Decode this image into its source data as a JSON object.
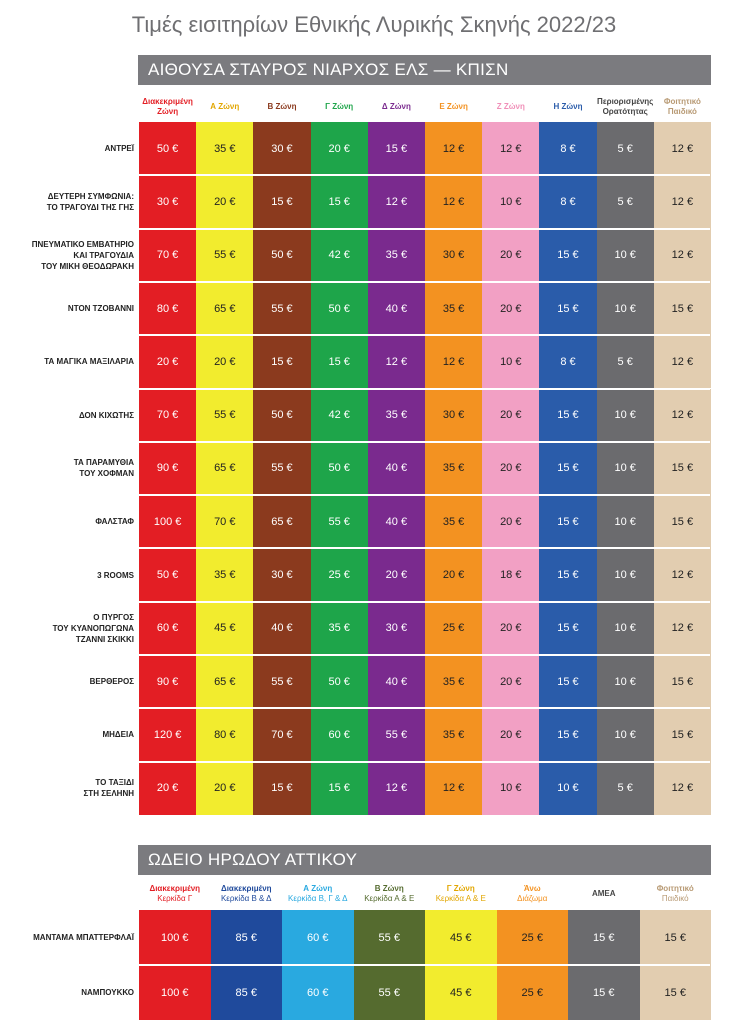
{
  "title": "Τιμές εισιτηρίων Εθνικής Λυρικής Σκηνής 2022/23",
  "section1": {
    "heading": "ΑΙΘΟΥΣΑ ΣΤΑΥΡΟΣ ΝΙΑΡΧΟΣ ΕΛΣ — ΚΠΙΣΝ",
    "columns": [
      {
        "lines": [
          "Διακεκριμένη",
          "Ζώνη"
        ],
        "color": "#e31e24",
        "text": "#ffffff"
      },
      {
        "lines": [
          "Α Ζώνη"
        ],
        "color": "#f2ec2e",
        "text": "#222222"
      },
      {
        "lines": [
          "Β Ζώνη"
        ],
        "color": "#8b3a1e",
        "text": "#ffffff"
      },
      {
        "lines": [
          "Γ Ζώνη"
        ],
        "color": "#1ea54a",
        "text": "#ffffff"
      },
      {
        "lines": [
          "Δ Ζώνη"
        ],
        "color": "#7a2a8e",
        "text": "#ffffff"
      },
      {
        "lines": [
          "Ε Ζώνη"
        ],
        "color": "#f39221",
        "text": "#222222"
      },
      {
        "lines": [
          "Ζ Ζώνη"
        ],
        "color": "#f2a0c4",
        "text": "#222222"
      },
      {
        "lines": [
          "Η Ζώνη"
        ],
        "color": "#2a5caa",
        "text": "#ffffff"
      },
      {
        "lines": [
          "Περιορισμένης",
          "Ορατότητας"
        ],
        "color": "#6b6b6e",
        "text": "#ffffff"
      },
      {
        "lines": [
          "Φοιτητικό",
          "Παιδικό"
        ],
        "color": "#e2cdb0",
        "text": "#222222"
      }
    ],
    "header_colors": [
      "#e31e24",
      "#e2a600",
      "#8b3a1e",
      "#1ea54a",
      "#7a2a8e",
      "#f39221",
      "#f08fb8",
      "#2a5caa",
      "#444444",
      "#b89a74"
    ],
    "rows": [
      {
        "label": [
          "ΑΝΤΡΕΪ"
        ],
        "prices": [
          "50 €",
          "35 €",
          "30 €",
          "20 €",
          "15 €",
          "12 €",
          "12 €",
          "8 €",
          "5 €",
          "12 €"
        ]
      },
      {
        "label": [
          "ΔΕΥΤΕΡΗ ΣΥΜΦΩΝΙΑ:",
          "ΤΟ ΤΡΑΓΟΥΔΙ ΤΗΣ ΓΗΣ"
        ],
        "prices": [
          "30 €",
          "20 €",
          "15 €",
          "15 €",
          "12 €",
          "12 €",
          "10 €",
          "8 €",
          "5 €",
          "12 €"
        ]
      },
      {
        "label": [
          "ΠΝΕΥΜΑΤΙΚΟ ΕΜΒΑΤΗΡΙΟ",
          "ΚΑΙ ΤΡΑΓΟΥΔΙΑ",
          "ΤΟΥ ΜΙΚΗ ΘΕΟΔΩΡΑΚΗ"
        ],
        "prices": [
          "70 €",
          "55 €",
          "50 €",
          "42 €",
          "35 €",
          "30 €",
          "20 €",
          "15 €",
          "10 €",
          "12 €"
        ]
      },
      {
        "label": [
          "ΝΤΟΝ ΤΖΟΒΑΝΝΙ"
        ],
        "prices": [
          "80 €",
          "65 €",
          "55 €",
          "50 €",
          "40 €",
          "35 €",
          "20 €",
          "15 €",
          "10 €",
          "15 €"
        ]
      },
      {
        "label": [
          "ΤΑ ΜΑΓΙΚΑ ΜΑΞΙΛΑΡΙΑ"
        ],
        "prices": [
          "20 €",
          "20 €",
          "15 €",
          "15 €",
          "12 €",
          "12 €",
          "10 €",
          "8 €",
          "5 €",
          "12 €"
        ]
      },
      {
        "label": [
          "ΔΟΝ ΚΙΧΩΤΗΣ"
        ],
        "prices": [
          "70 €",
          "55 €",
          "50 €",
          "42 €",
          "35 €",
          "30 €",
          "20 €",
          "15 €",
          "10 €",
          "12 €"
        ]
      },
      {
        "label": [
          "ΤΑ ΠΑΡΑΜΥΘΙΑ",
          "ΤΟΥ ΧΟΦΜΑΝ"
        ],
        "prices": [
          "90 €",
          "65 €",
          "55 €",
          "50 €",
          "40 €",
          "35 €",
          "20 €",
          "15 €",
          "10 €",
          "15 €"
        ]
      },
      {
        "label": [
          "ΦΑΛΣΤΑΦ"
        ],
        "prices": [
          "100 €",
          "70 €",
          "65 €",
          "55 €",
          "40 €",
          "35 €",
          "20 €",
          "15 €",
          "10 €",
          "15 €"
        ]
      },
      {
        "label": [
          "3 ROOMS"
        ],
        "prices": [
          "50 €",
          "35 €",
          "30 €",
          "25 €",
          "20 €",
          "20 €",
          "18 €",
          "15 €",
          "10 €",
          "12 €"
        ]
      },
      {
        "label": [
          "Ο ΠΥΡΓΟΣ",
          "ΤΟΥ ΚΥΑΝΟΠΩΓΩΝΑ",
          "ΤΖΑΝΝΙ ΣΚΙΚΚΙ"
        ],
        "prices": [
          "60 €",
          "45 €",
          "40 €",
          "35 €",
          "30 €",
          "25 €",
          "20 €",
          "15 €",
          "10 €",
          "12 €"
        ]
      },
      {
        "label": [
          "ΒΕΡΘΕΡΟΣ"
        ],
        "prices": [
          "90 €",
          "65 €",
          "55 €",
          "50 €",
          "40 €",
          "35 €",
          "20 €",
          "15 €",
          "10 €",
          "15 €"
        ]
      },
      {
        "label": [
          "ΜΗΔΕΙΑ"
        ],
        "prices": [
          "120 €",
          "80 €",
          "70 €",
          "60 €",
          "55 €",
          "35 €",
          "20 €",
          "15 €",
          "10 €",
          "15 €"
        ]
      },
      {
        "label": [
          "ΤΟ ΤΑΞΙΔΙ",
          "ΣΤΗ ΣΕΛΗΝΗ"
        ],
        "prices": [
          "20 €",
          "20 €",
          "15 €",
          "15 €",
          "12 €",
          "12 €",
          "10 €",
          "10 €",
          "5 €",
          "12 €"
        ]
      }
    ]
  },
  "section2": {
    "heading": "ΩΔΕΙΟ ΗΡΩΔΟΥ ΑΤΤΙΚΟΥ",
    "columns": [
      {
        "lines": [
          "Διακεκριμένη",
          "Κερκίδα Γ"
        ],
        "color": "#e31e24",
        "text": "#ffffff"
      },
      {
        "lines": [
          "Διακεκριμένη",
          "Κερκίδα Β & Δ"
        ],
        "color": "#1f4a9c",
        "text": "#ffffff"
      },
      {
        "lines": [
          "Α Ζώνη",
          "Κερκίδα Β, Γ & Δ"
        ],
        "color": "#29a9e0",
        "text": "#ffffff"
      },
      {
        "lines": [
          "Β Ζώνη",
          "Κερκίδα Α & Ε"
        ],
        "color": "#556b2f",
        "text": "#ffffff"
      },
      {
        "lines": [
          "Γ Ζώνη",
          "Κερκίδα Α & Ε"
        ],
        "color": "#f2ec2e",
        "text": "#222222"
      },
      {
        "lines": [
          "Άνω",
          "Διάζωμα"
        ],
        "color": "#f39221",
        "text": "#222222"
      },
      {
        "lines": [
          "ΑΜΕΑ"
        ],
        "color": "#6b6b6e",
        "text": "#ffffff"
      },
      {
        "lines": [
          "Φοιτητικό",
          "Παιδικό"
        ],
        "color": "#e2cdb0",
        "text": "#222222"
      }
    ],
    "header_colors": [
      "#e31e24",
      "#1f4a9c",
      "#29a9e0",
      "#556b2f",
      "#e2a600",
      "#f39221",
      "#444444",
      "#b89a74"
    ],
    "rows": [
      {
        "label": [
          "ΜΑΝΤΑΜΑ ΜΠΑΤΤΕΡΦΛΑΪ"
        ],
        "prices": [
          "100 €",
          "85 €",
          "60 €",
          "55 €",
          "45 €",
          "25 €",
          "15 €",
          "15 €"
        ]
      },
      {
        "label": [
          "ΝΑΜΠΟΥΚΚΟ"
        ],
        "prices": [
          "100 €",
          "85 €",
          "60 €",
          "55 €",
          "45 €",
          "25 €",
          "15 €",
          "15 €"
        ]
      }
    ]
  }
}
